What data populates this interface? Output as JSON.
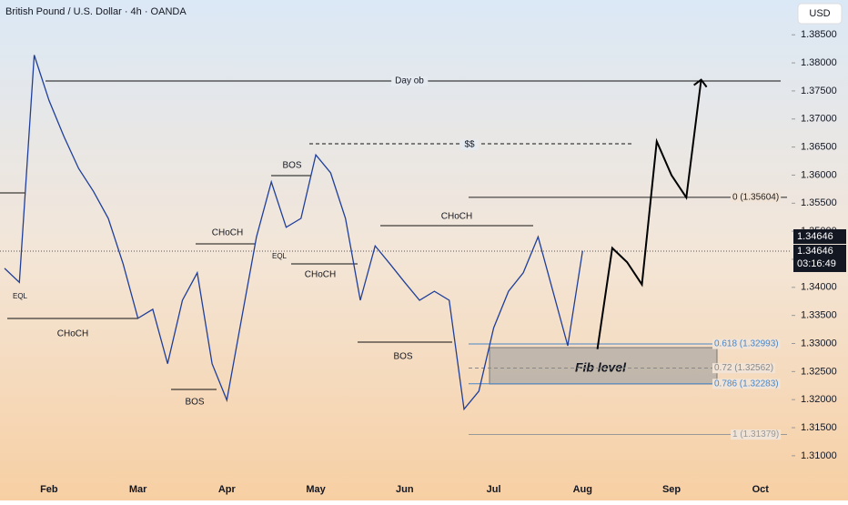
{
  "chart_data": {
    "type": "line",
    "title": "British Pound / U.S. Dollar · 4h · OANDA",
    "currency": "USD",
    "categories": [
      null,
      null,
      null,
      "Feb",
      null,
      null,
      null,
      null,
      null,
      "Mar",
      null,
      null,
      null,
      null,
      null,
      "Apr",
      null,
      null,
      null,
      null,
      null,
      "May",
      null,
      null,
      null,
      null,
      null,
      "Jun",
      null,
      null,
      null,
      null,
      null,
      "Jul",
      null,
      null,
      null,
      null,
      null,
      "Aug",
      null,
      null,
      null,
      null,
      null,
      "Sep",
      null,
      null,
      null,
      null,
      null,
      "Oct"
    ],
    "series": [
      {
        "color": "#1f3f9a",
        "values": [
          1.3434,
          1.3409,
          1.3814,
          1.3733,
          1.3669,
          1.3612,
          1.3571,
          1.3523,
          1.3442,
          1.3345,
          1.3361,
          1.3264,
          1.3377,
          1.3426,
          1.3264,
          1.3199,
          1.3345,
          1.349,
          1.3588,
          1.3507,
          1.3523,
          1.3636,
          1.3604,
          1.3523,
          1.3377,
          1.3474,
          1.3442,
          1.3409,
          1.3377,
          1.3393,
          1.3377,
          1.3183,
          1.3215,
          1.3328,
          1.3393,
          1.3426,
          1.349,
          1.3393,
          1.3296,
          1.3465,
          null,
          null,
          null,
          null,
          null,
          null,
          null,
          null,
          null,
          null,
          null,
          null
        ]
      },
      {
        "color": "#000000",
        "values": [
          null,
          null,
          null,
          null,
          null,
          null,
          null,
          null,
          null,
          null,
          null,
          null,
          null,
          null,
          null,
          null,
          null,
          null,
          null,
          null,
          null,
          null,
          null,
          null,
          null,
          null,
          null,
          null,
          null,
          null,
          null,
          null,
          null,
          null,
          null,
          null,
          null,
          null,
          null,
          null,
          1.329,
          1.347,
          1.3445,
          1.3405,
          1.366,
          1.36,
          1.356,
          1.377,
          null,
          null,
          null,
          null
        ]
      }
    ],
    "ylim": [
      1.3069,
      1.3912
    ],
    "yticks": [
      {
        "value": 1.31,
        "label": "1.31000"
      },
      {
        "value": 1.315,
        "label": "1.31500"
      },
      {
        "value": 1.32,
        "label": "1.32000"
      },
      {
        "value": 1.325,
        "label": "1.32500"
      },
      {
        "value": 1.33,
        "label": "1.33000"
      },
      {
        "value": 1.335,
        "label": "1.33500"
      },
      {
        "value": 1.34,
        "label": "1.34000"
      },
      {
        "value": 1.345,
        "label": "1.34500"
      },
      {
        "value": 1.35,
        "label": "1.35000"
      },
      {
        "value": 1.355,
        "label": "1.35500"
      },
      {
        "value": 1.36,
        "label": "1.36000"
      },
      {
        "value": 1.365,
        "label": "1.36500"
      },
      {
        "value": 1.37,
        "label": "1.37000"
      },
      {
        "value": 1.375,
        "label": "1.37500"
      },
      {
        "value": 1.38,
        "label": "1.38000"
      },
      {
        "value": 1.385,
        "label": "1.38500"
      }
    ],
    "last_price": 1.34646,
    "countdown": "03:16:49",
    "fib_levels": [
      {
        "value": 1.35604,
        "label": "0 (1.35604)"
      },
      {
        "value": 1.32993,
        "label": "0.618 (1.32993)"
      },
      {
        "value": 1.32562,
        "label": "0.72 (1.32562)"
      },
      {
        "value": 1.32283,
        "label": "0.786 (1.32283)"
      },
      {
        "value": 1.31379,
        "label": "1 (1.31379)"
      }
    ],
    "annotations": [
      "Day ob",
      "$$",
      "BOS",
      "CHoCH",
      "EQL",
      "CHoCH",
      "CHoCH",
      "BOS",
      "EQL",
      "CHoCH",
      "BOS",
      "Fib level"
    ]
  }
}
